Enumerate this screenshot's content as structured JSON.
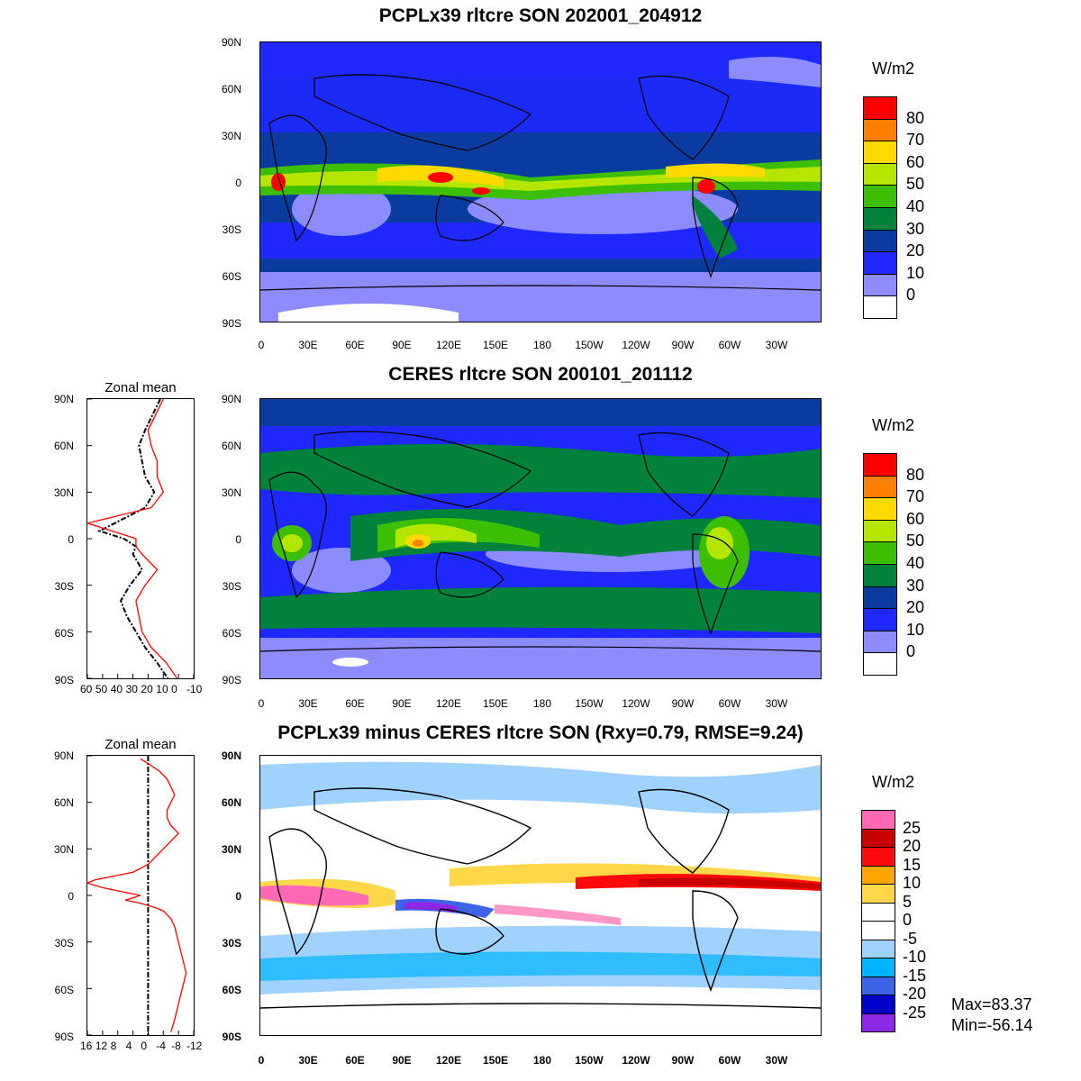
{
  "panels": [
    {
      "id": "model",
      "title": "PCPLx39 rltcre SON 202001_204912",
      "colorbar_unit": "W/m2",
      "colorbar_labels": [
        "80",
        "70",
        "60",
        "50",
        "40",
        "30",
        "20",
        "10",
        "0"
      ],
      "colorbar_colors": [
        "#ff0000",
        "#ff7f00",
        "#ffd900",
        "#b5e600",
        "#3cbf00",
        "#00823c",
        "#0a3ca0",
        "#1e28ff",
        "#8c8cff",
        "#ffffff"
      ],
      "lat_labels": [
        "90N",
        "60N",
        "30N",
        "0",
        "30S",
        "60S",
        "90S"
      ],
      "lon_labels": [
        "0",
        "30E",
        "60E",
        "90E",
        "120E",
        "150E",
        "180",
        "150W",
        "120W",
        "90W",
        "60W",
        "30W"
      ]
    },
    {
      "id": "obs",
      "title": "CERES rltcre SON 200101_201112",
      "colorbar_unit": "W/m2",
      "colorbar_labels": [
        "80",
        "70",
        "60",
        "50",
        "40",
        "30",
        "20",
        "10",
        "0"
      ],
      "colorbar_colors": [
        "#ff0000",
        "#ff7f00",
        "#ffd900",
        "#b5e600",
        "#3cbf00",
        "#00823c",
        "#0a3ca0",
        "#1e28ff",
        "#8c8cff",
        "#ffffff"
      ],
      "lat_labels": [
        "90N",
        "60N",
        "30N",
        "0",
        "30S",
        "60S",
        "90S"
      ],
      "lon_labels": [
        "0",
        "30E",
        "60E",
        "90E",
        "120E",
        "150E",
        "180",
        "150W",
        "120W",
        "90W",
        "60W",
        "30W"
      ],
      "zonal_title": "Zonal mean",
      "zonal_lat_labels": [
        "90N",
        "60N",
        "30N",
        "0",
        "30S",
        "60S",
        "90S"
      ],
      "zonal_x_labels": [
        "60",
        "50",
        "40",
        "30",
        "20",
        "10",
        "0",
        "-10"
      ]
    },
    {
      "id": "diff",
      "title": "PCPLx39 minus CERES rltcre SON (Rxy=0.79, RMSE=9.24)",
      "colorbar_unit": "W/m2",
      "colorbar_labels": [
        "25",
        "20",
        "15",
        "10",
        "5",
        "0",
        "-5",
        "-10",
        "-15",
        "-20",
        "-25"
      ],
      "colorbar_colors": [
        "#ff69b4",
        "#c80000",
        "#ff0a0a",
        "#ffa500",
        "#ffd84a",
        "#ffffff",
        "#ffffff",
        "#a0d2ff",
        "#00b4ff",
        "#3c64e6",
        "#0000c8",
        "#8c28e6"
      ],
      "lat_labels": [
        "90N",
        "60N",
        "30N",
        "0",
        "30S",
        "60S",
        "90S"
      ],
      "lon_labels": [
        "0",
        "30E",
        "60E",
        "90E",
        "120E",
        "150E",
        "180",
        "150W",
        "120W",
        "90W",
        "60W",
        "30W"
      ],
      "zonal_title": "Zonal mean",
      "zonal_lat_labels": [
        "90N",
        "60N",
        "30N",
        "0",
        "30S",
        "60S",
        "90S"
      ],
      "zonal_x_labels": [
        "16",
        "12",
        "8",
        "4",
        "0",
        "-4",
        "-8",
        "-12"
      ]
    }
  ],
  "stats": {
    "max": "Max=83.37",
    "min": "Min=-56.14"
  },
  "chart_data": [
    {
      "type": "line",
      "title": "Zonal mean",
      "series": [],
      "xlabel": "",
      "ylabel": "",
      "xlim": [
        60,
        -10
      ],
      "ylim": [
        -90,
        90
      ],
      "x_ticks": [
        60,
        50,
        40,
        30,
        20,
        10,
        0,
        -10
      ],
      "y_ticks": [
        "90N",
        "60N",
        "30N",
        "0",
        "30S",
        "60S",
        "90S"
      ],
      "curves": [
        {
          "color": "#000000",
          "style": "dashed",
          "lat": [
            90,
            80,
            70,
            60,
            50,
            40,
            30,
            20,
            10,
            5,
            0,
            -5,
            -10,
            -20,
            -30,
            -40,
            -50,
            -60,
            -70,
            -80,
            -90
          ],
          "x": [
            12,
            17,
            22,
            26,
            24,
            22,
            16,
            22,
            42,
            52,
            36,
            28,
            30,
            24,
            32,
            38,
            34,
            28,
            22,
            14,
            7
          ]
        },
        {
          "color": "#ff0000",
          "style": "solid",
          "lat": [
            90,
            80,
            70,
            60,
            50,
            40,
            30,
            20,
            10,
            5,
            0,
            -5,
            -10,
            -20,
            -30,
            -40,
            -50,
            -60,
            -70,
            -80,
            -90
          ],
          "x": [
            10,
            15,
            20,
            18,
            14,
            14,
            10,
            18,
            60,
            44,
            28,
            28,
            24,
            14,
            22,
            28,
            26,
            24,
            18,
            8,
            1
          ]
        }
      ]
    },
    {
      "type": "line",
      "title": "Zonal mean",
      "series": [],
      "xlabel": "",
      "ylabel": "",
      "xlim": [
        16,
        -12
      ],
      "ylim": [
        -90,
        90
      ],
      "x_ticks": [
        16,
        12,
        8,
        4,
        0,
        -4,
        -8,
        -12
      ],
      "y_ticks": [
        "90N",
        "60N",
        "30N",
        "0",
        "30S",
        "60S",
        "90S"
      ],
      "curves": [
        {
          "color": "#000000",
          "style": "dashed",
          "lat": [
            90,
            -90
          ],
          "x": [
            0,
            0
          ]
        },
        {
          "color": "#ff0000",
          "style": "solid",
          "lat": [
            88,
            85,
            80,
            75,
            70,
            65,
            60,
            55,
            50,
            45,
            40,
            35,
            30,
            25,
            20,
            15,
            10,
            8,
            5,
            2,
            0,
            -3,
            -5,
            -8,
            -10,
            -15,
            -20,
            -30,
            -40,
            -50,
            -60,
            -70,
            -80,
            -88
          ],
          "x": [
            2,
            0,
            -3,
            -5,
            -6,
            -7,
            -6,
            -5,
            -5,
            -6,
            -8,
            -6,
            -4,
            -2,
            0,
            4,
            14,
            16,
            12,
            6,
            2,
            6,
            2,
            -2,
            -4,
            -6,
            -7,
            -8,
            -9,
            -10,
            -9,
            -8,
            -7,
            -6
          ]
        }
      ]
    }
  ]
}
